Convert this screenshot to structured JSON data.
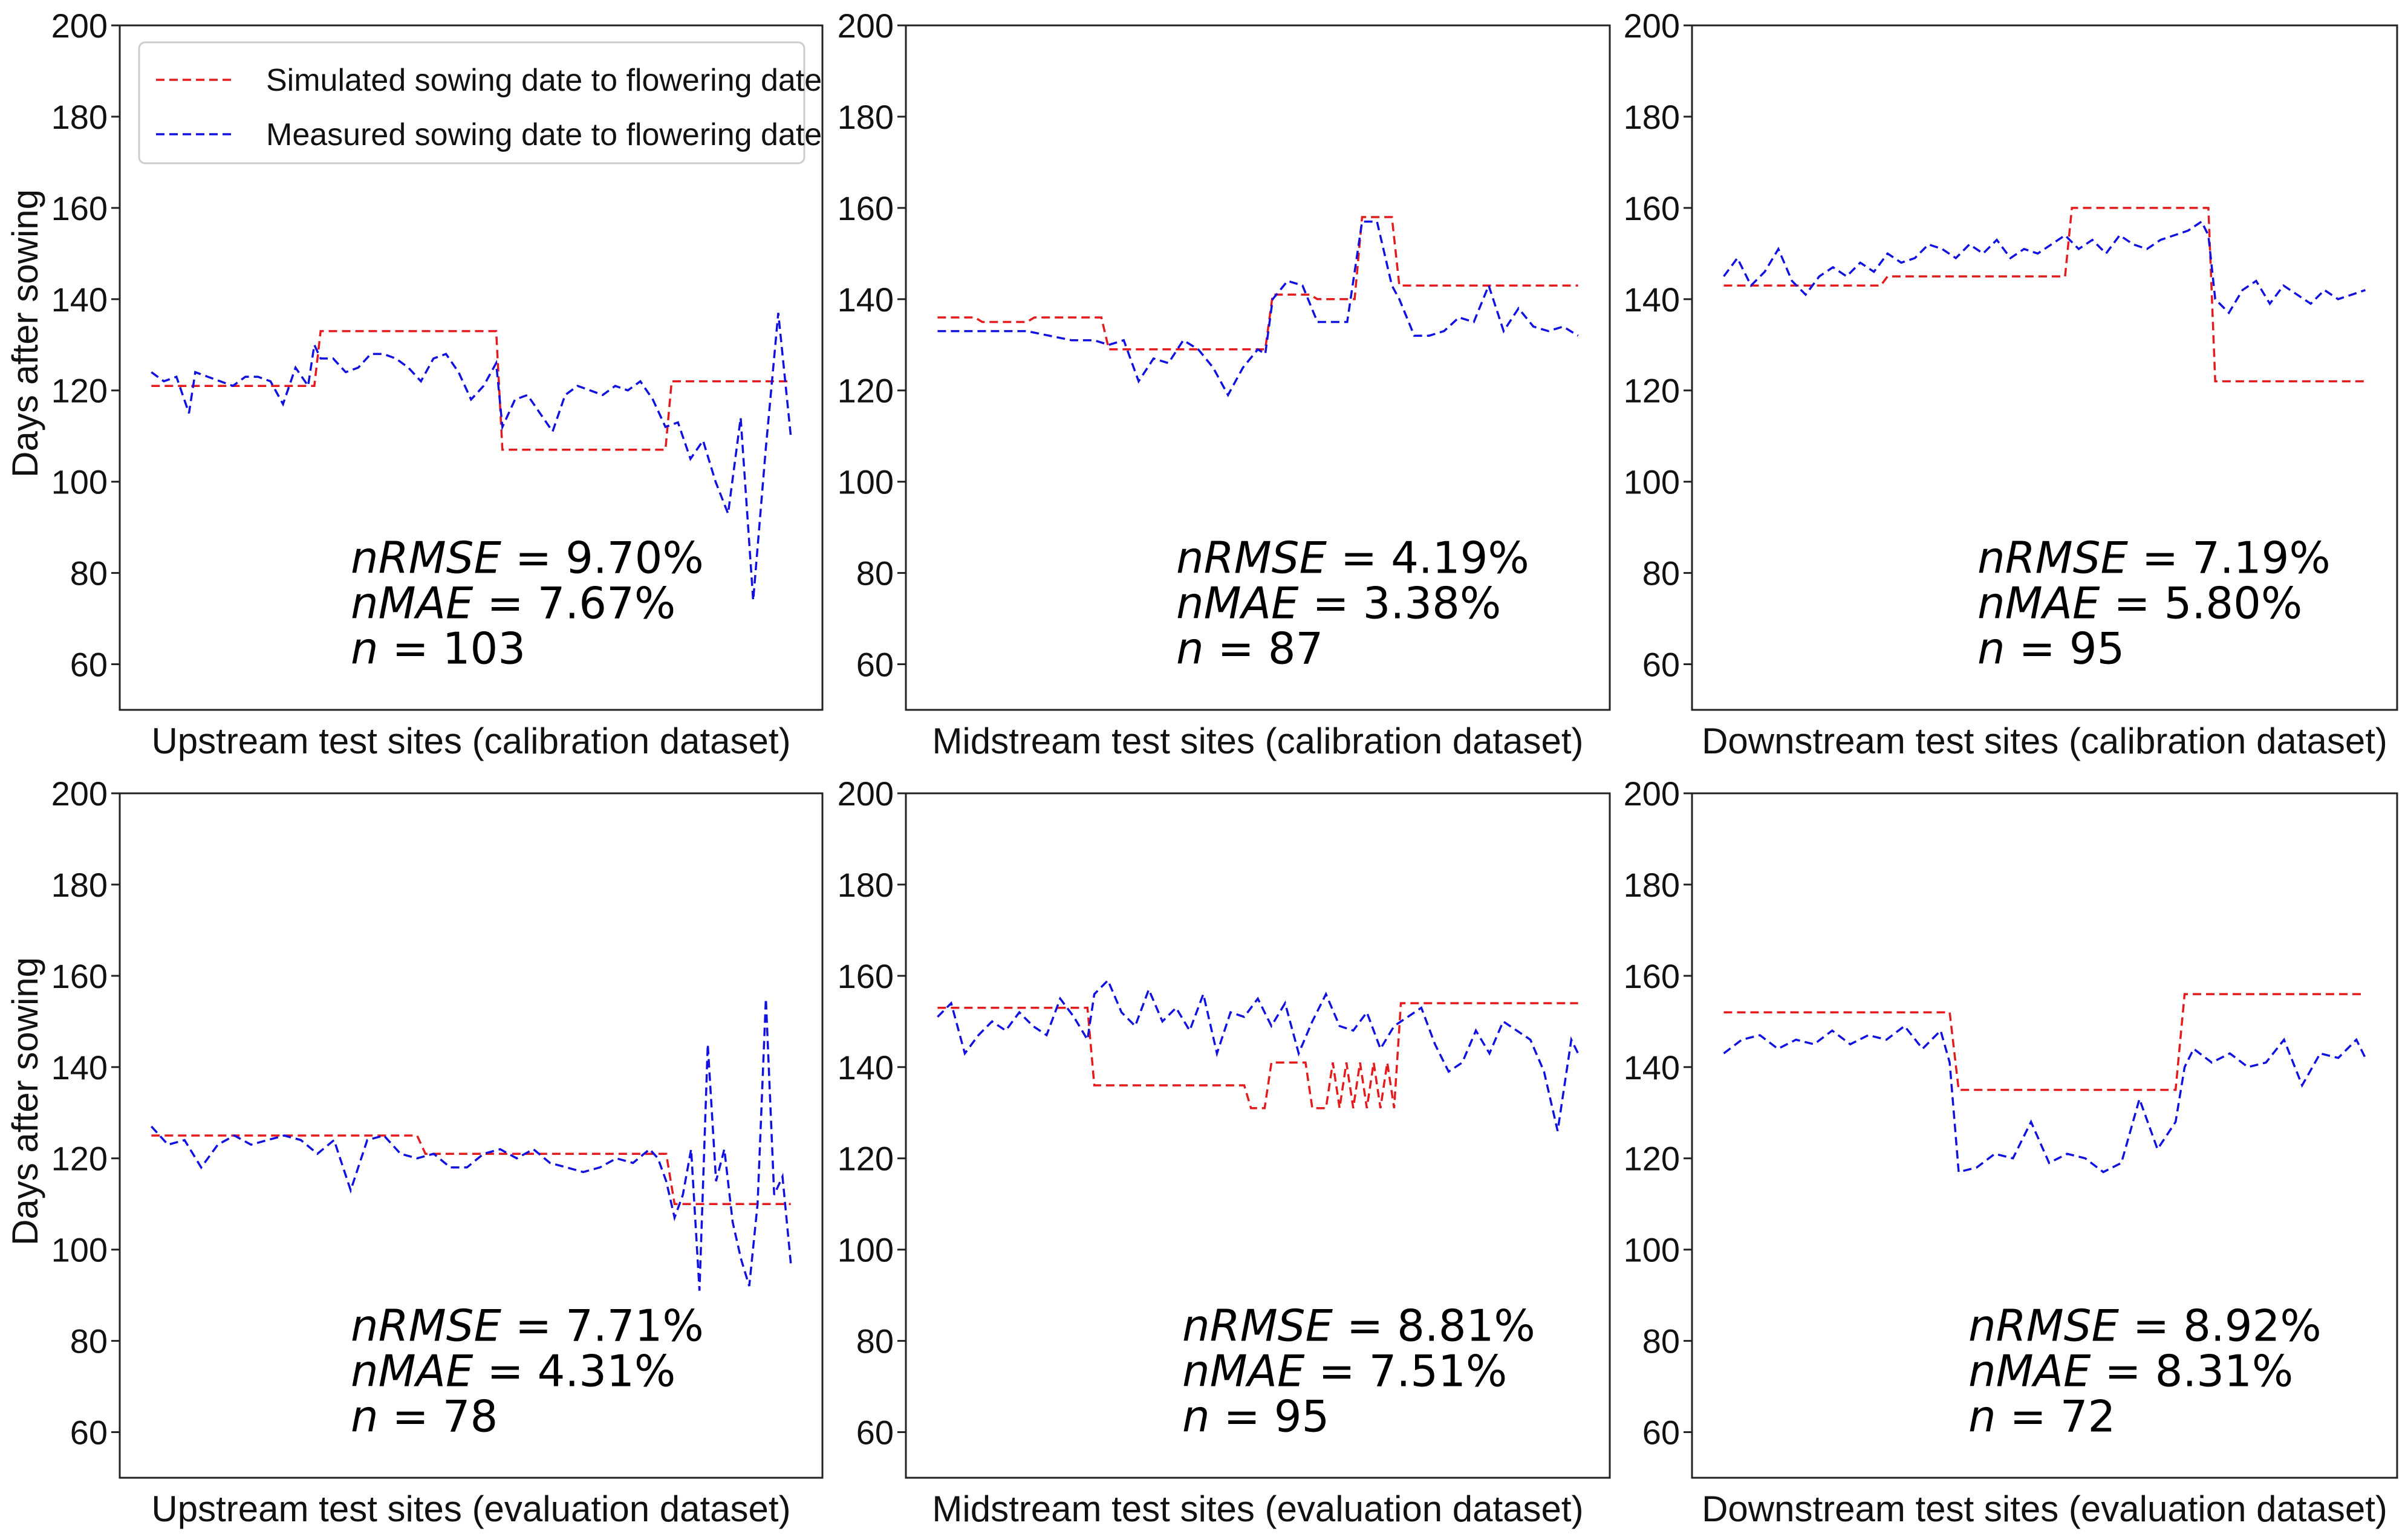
{
  "legend": {
    "simulated": "Simulated sowing date to flowering date",
    "measured": "Measured sowing date to flowering date",
    "simulated_color": "#e41a1c",
    "measured_color": "#1010e0"
  },
  "chart_data": [
    {
      "type": "line",
      "xlabel": "Upstream test sites (calibration dataset)",
      "ylabel": "Days after sowing",
      "ylim": [
        50,
        200
      ],
      "yticks": [
        60,
        80,
        100,
        120,
        140,
        160,
        180,
        200
      ],
      "stats": {
        "nrmse": "9.70%",
        "nmae": "7.67%",
        "n": "103"
      },
      "legend_position": "upper-left",
      "series": [
        {
          "name": "Simulated sowing date to flowering date",
          "x": [
            0,
            26,
            27,
            55,
            56,
            82,
            83,
            102
          ],
          "y": [
            121,
            121,
            133,
            133,
            107,
            107,
            122,
            122
          ]
        },
        {
          "name": "Measured sowing date to flowering date",
          "x": [
            0,
            2,
            4,
            6,
            7,
            9,
            11,
            13,
            15,
            17,
            19,
            21,
            23,
            25,
            26,
            27,
            29,
            31,
            33,
            35,
            37,
            39,
            41,
            43,
            45,
            47,
            49,
            51,
            53,
            55,
            56,
            58,
            60,
            62,
            64,
            66,
            68,
            70,
            72,
            74,
            76,
            78,
            80,
            82,
            84,
            86,
            88,
            90,
            92,
            94,
            96,
            98,
            100,
            102
          ],
          "y": [
            124,
            122,
            123,
            115,
            124,
            123,
            122,
            121,
            123,
            123,
            122,
            117,
            125,
            121,
            130,
            127,
            127,
            124,
            125,
            128,
            128,
            127,
            125,
            122,
            127,
            128,
            124,
            118,
            121,
            126,
            112,
            118,
            119,
            115,
            111,
            119,
            121,
            120,
            119,
            121,
            120,
            122,
            118,
            112,
            113,
            105,
            109,
            100,
            93,
            114,
            74,
            107,
            137,
            110
          ]
        }
      ]
    },
    {
      "type": "line",
      "xlabel": "Midstream test sites (calibration dataset)",
      "ylabel": "",
      "ylim": [
        50,
        200
      ],
      "yticks": [
        60,
        80,
        100,
        120,
        140,
        160,
        180,
        200
      ],
      "stats": {
        "nrmse": "4.19%",
        "nmae": "3.38%",
        "n": "87"
      },
      "series": [
        {
          "name": "Simulated sowing date to flowering date",
          "x": [
            0,
            5,
            6,
            12,
            13,
            22,
            23,
            44,
            45,
            50,
            51,
            56,
            57,
            61,
            62,
            86
          ],
          "y": [
            136,
            136,
            135,
            135,
            136,
            136,
            129,
            129,
            141,
            141,
            140,
            140,
            158,
            158,
            143,
            143
          ]
        },
        {
          "name": "Measured sowing date to flowering date",
          "x": [
            0,
            3,
            6,
            9,
            12,
            15,
            18,
            21,
            23,
            25,
            27,
            29,
            31,
            33,
            35,
            37,
            39,
            41,
            43,
            44,
            45,
            47,
            49,
            51,
            53,
            55,
            57,
            59,
            61,
            62,
            64,
            66,
            68,
            70,
            72,
            74,
            76,
            78,
            80,
            82,
            84,
            86
          ],
          "y": [
            133,
            133,
            133,
            133,
            133,
            132,
            131,
            131,
            130,
            131,
            122,
            127,
            126,
            131,
            129,
            125,
            119,
            125,
            129,
            128,
            140,
            144,
            143,
            135,
            135,
            135,
            157,
            157,
            143,
            140,
            132,
            132,
            133,
            136,
            135,
            143,
            133,
            138,
            134,
            133,
            134,
            132
          ]
        }
      ]
    },
    {
      "type": "line",
      "xlabel": "Downstream test sites (calibration dataset)",
      "ylabel": "",
      "ylim": [
        50,
        200
      ],
      "yticks": [
        60,
        80,
        100,
        120,
        140,
        160,
        180,
        200
      ],
      "stats": {
        "nrmse": "7.19%",
        "nmae": "5.80%",
        "n": "95"
      },
      "series": [
        {
          "name": "Simulated sowing date to flowering date",
          "x": [
            0,
            23,
            24,
            50,
            51,
            71,
            72,
            94
          ],
          "y": [
            143,
            143,
            145,
            145,
            160,
            160,
            122,
            122
          ]
        },
        {
          "name": "Measured sowing date to flowering date",
          "x": [
            0,
            2,
            4,
            6,
            8,
            10,
            12,
            14,
            16,
            18,
            20,
            22,
            24,
            26,
            28,
            30,
            32,
            34,
            36,
            38,
            40,
            42,
            44,
            46,
            48,
            50,
            52,
            54,
            56,
            58,
            60,
            62,
            64,
            66,
            68,
            70,
            71,
            72,
            74,
            76,
            78,
            80,
            82,
            84,
            86,
            88,
            90,
            92,
            94
          ],
          "y": [
            145,
            149,
            143,
            146,
            151,
            144,
            141,
            145,
            147,
            145,
            148,
            146,
            150,
            148,
            149,
            152,
            151,
            149,
            152,
            150,
            153,
            149,
            151,
            150,
            152,
            154,
            151,
            153,
            150,
            154,
            152,
            151,
            153,
            154,
            155,
            157,
            154,
            140,
            137,
            142,
            144,
            139,
            143,
            141,
            139,
            142,
            140,
            141,
            142
          ]
        }
      ]
    },
    {
      "type": "line",
      "xlabel": "Upstream test sites (evaluation dataset)",
      "ylabel": "Days after sowing",
      "ylim": [
        50,
        200
      ],
      "yticks": [
        60,
        80,
        100,
        120,
        140,
        160,
        180,
        200
      ],
      "stats": {
        "nrmse": "7.71%",
        "nmae": "4.31%",
        "n": "78"
      },
      "series": [
        {
          "name": "Simulated sowing date to flowering date",
          "x": [
            0,
            32,
            33,
            62,
            63,
            77
          ],
          "y": [
            125,
            125,
            121,
            121,
            110,
            110
          ]
        },
        {
          "name": "Measured sowing date to flowering date",
          "x": [
            0,
            2,
            4,
            6,
            8,
            10,
            12,
            14,
            16,
            18,
            20,
            22,
            24,
            26,
            28,
            30,
            32,
            34,
            36,
            38,
            40,
            42,
            44,
            46,
            48,
            50,
            52,
            54,
            56,
            58,
            60,
            61,
            62,
            63,
            64,
            65,
            66,
            67,
            68,
            69,
            70,
            71,
            72,
            73,
            74,
            75,
            76,
            77
          ],
          "y": [
            127,
            123,
            124,
            118,
            123,
            125,
            123,
            124,
            125,
            124,
            121,
            124,
            113,
            124,
            125,
            121,
            120,
            121,
            118,
            118,
            121,
            122,
            120,
            122,
            119,
            118,
            117,
            118,
            120,
            119,
            122,
            120,
            115,
            107,
            112,
            122,
            91,
            145,
            115,
            122,
            106,
            98,
            92,
            110,
            155,
            112,
            116,
            97
          ]
        }
      ]
    },
    {
      "type": "line",
      "xlabel": "Midstream test sites (evaluation dataset)",
      "ylabel": "",
      "ylim": [
        50,
        200
      ],
      "yticks": [
        60,
        80,
        100,
        120,
        140,
        160,
        180,
        200
      ],
      "stats": {
        "nrmse": "8.81%",
        "nmae": "7.51%",
        "n": "95"
      },
      "series": [
        {
          "name": "Simulated sowing date to flowering date",
          "x": [
            0,
            22,
            23,
            45,
            46,
            48,
            49,
            54,
            55,
            57,
            58,
            59,
            60,
            61,
            62,
            63,
            64,
            65,
            66,
            67,
            68,
            94
          ],
          "y": [
            153,
            153,
            136,
            136,
            131,
            131,
            141,
            141,
            131,
            131,
            141,
            131,
            141,
            131,
            141,
            131,
            141,
            131,
            141,
            131,
            154,
            154
          ]
        },
        {
          "name": "Measured sowing date to flowering date",
          "x": [
            0,
            2,
            4,
            6,
            8,
            10,
            12,
            14,
            16,
            18,
            20,
            22,
            23,
            25,
            27,
            29,
            31,
            33,
            35,
            37,
            39,
            41,
            43,
            45,
            47,
            49,
            51,
            53,
            55,
            57,
            59,
            61,
            63,
            65,
            67,
            69,
            71,
            73,
            75,
            77,
            79,
            81,
            83,
            85,
            87,
            89,
            91,
            93,
            94
          ],
          "y": [
            151,
            154,
            143,
            147,
            150,
            148,
            152,
            149,
            147,
            155,
            151,
            146,
            156,
            159,
            152,
            149,
            157,
            150,
            153,
            148,
            156,
            143,
            152,
            151,
            155,
            149,
            154,
            143,
            150,
            156,
            149,
            148,
            152,
            144,
            149,
            151,
            153,
            145,
            139,
            141,
            148,
            143,
            150,
            148,
            146,
            139,
            126,
            146,
            143
          ]
        }
      ]
    },
    {
      "type": "line",
      "xlabel": "Downstream test sites (evaluation dataset)",
      "ylabel": "",
      "ylim": [
        50,
        200
      ],
      "yticks": [
        60,
        80,
        100,
        120,
        140,
        160,
        180,
        200
      ],
      "stats": {
        "nrmse": "8.92%",
        "nmae": "8.31%",
        "n": "72"
      },
      "series": [
        {
          "name": "Simulated sowing date to flowering date",
          "x": [
            0,
            25,
            26,
            50,
            51,
            71
          ],
          "y": [
            152,
            152,
            135,
            135,
            156,
            156
          ]
        },
        {
          "name": "Measured sowing date to flowering date",
          "x": [
            0,
            2,
            4,
            6,
            8,
            10,
            12,
            14,
            16,
            18,
            20,
            22,
            24,
            25,
            26,
            28,
            30,
            32,
            34,
            36,
            38,
            40,
            42,
            44,
            46,
            48,
            50,
            51,
            52,
            54,
            56,
            58,
            60,
            62,
            64,
            66,
            68,
            70,
            71
          ],
          "y": [
            143,
            146,
            147,
            144,
            146,
            145,
            148,
            145,
            147,
            146,
            149,
            144,
            148,
            141,
            117,
            118,
            121,
            120,
            128,
            119,
            121,
            120,
            117,
            119,
            133,
            122,
            128,
            140,
            144,
            141,
            143,
            140,
            141,
            146,
            136,
            143,
            142,
            146,
            142
          ]
        }
      ]
    }
  ]
}
